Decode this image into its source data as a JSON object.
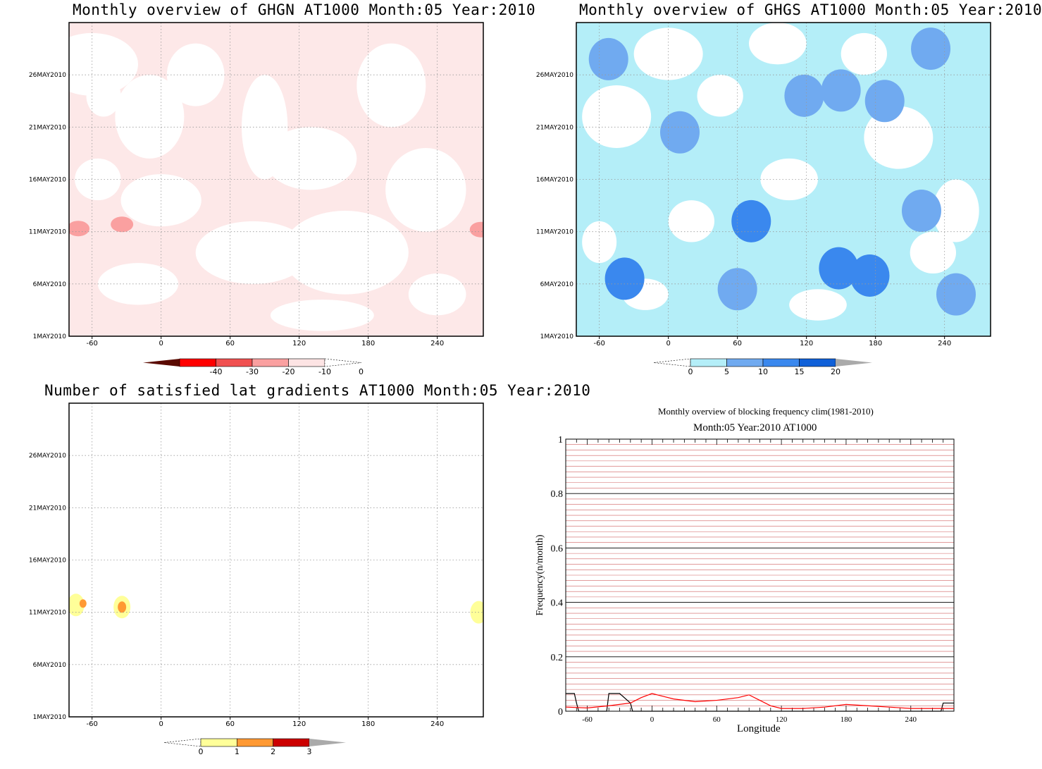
{
  "chart_data": [
    {
      "type": "heatmap",
      "title": "Monthly overview of GHGN AT1000 Month:05 Year:2010",
      "x_ticks": [
        "-60",
        "0",
        "60",
        "120",
        "180",
        "240"
      ],
      "x_tick_values": [
        -60,
        0,
        60,
        120,
        180,
        240
      ],
      "xlim": [
        -80,
        280
      ],
      "y_ticks": [
        "1MAY2010",
        "6MAY2010",
        "11MAY2010",
        "16MAY2010",
        "21MAY2010",
        "26MAY2010"
      ],
      "y_tick_values": [
        1,
        6,
        11,
        16,
        21,
        26
      ],
      "ylim": [
        1,
        31
      ],
      "colorbar": {
        "labels": [
          "-40",
          "-30",
          "-20",
          "-10",
          "0"
        ],
        "colors": [
          "#5a0a00",
          "#ff0000",
          "#f05050",
          "#faa0a0",
          "#fde4e4"
        ]
      },
      "fill_color": "#fde8e8",
      "blobs": [
        {
          "lon": -72,
          "day": 11.3,
          "level": "-10"
        },
        {
          "lon": -34,
          "day": 11.7,
          "level": "-10"
        },
        {
          "lon": 278,
          "day": 11.2,
          "level": "-10"
        }
      ]
    },
    {
      "type": "heatmap",
      "title": "Monthly overview of GHGS AT1000 Month:05 Year:2010",
      "x_ticks": [
        "-60",
        "0",
        "60",
        "120",
        "180",
        "240"
      ],
      "x_tick_values": [
        -60,
        0,
        60,
        120,
        180,
        240
      ],
      "xlim": [
        -80,
        280
      ],
      "y_ticks": [
        "1MAY2010",
        "6MAY2010",
        "11MAY2010",
        "16MAY2010",
        "21MAY2010",
        "26MAY2010"
      ],
      "y_tick_values": [
        1,
        6,
        11,
        16,
        21,
        26
      ],
      "ylim": [
        1,
        31
      ],
      "colorbar": {
        "labels": [
          "0",
          "5",
          "10",
          "15",
          "20"
        ],
        "colors": [
          "#b4eef8",
          "#70aaf0",
          "#3a88ee",
          "#1060d8",
          "#aaaaaa"
        ]
      },
      "fill_color": "#b4eef8",
      "blobs": [
        {
          "lon": -52,
          "day": 27.5,
          "level": "5"
        },
        {
          "lon": 10,
          "day": 20.5,
          "level": "5"
        },
        {
          "lon": 72,
          "day": 12,
          "level": "10"
        },
        {
          "lon": 150,
          "day": 24.5,
          "level": "5"
        },
        {
          "lon": 118,
          "day": 24,
          "level": "5"
        },
        {
          "lon": 228,
          "day": 28.5,
          "level": "5"
        },
        {
          "lon": -38,
          "day": 6.5,
          "level": "10"
        },
        {
          "lon": 148,
          "day": 7.5,
          "level": "10"
        },
        {
          "lon": 175,
          "day": 6.8,
          "level": "10"
        },
        {
          "lon": 60,
          "day": 5.5,
          "level": "5"
        },
        {
          "lon": 250,
          "day": 5,
          "level": "5"
        },
        {
          "lon": 220,
          "day": 13,
          "level": "5"
        },
        {
          "lon": 188,
          "day": 23.5,
          "level": "5"
        }
      ]
    },
    {
      "type": "heatmap",
      "title": "Number of satisfied lat gradients AT1000 Month:05 Year:2010",
      "x_ticks": [
        "-60",
        "0",
        "60",
        "120",
        "180",
        "240"
      ],
      "x_tick_values": [
        -60,
        0,
        60,
        120,
        180,
        240
      ],
      "xlim": [
        -80,
        280
      ],
      "y_ticks": [
        "1MAY2010",
        "6MAY2010",
        "11MAY2010",
        "16MAY2010",
        "21MAY2010",
        "26MAY2010"
      ],
      "y_tick_values": [
        1,
        6,
        11,
        16,
        21,
        26
      ],
      "ylim": [
        1,
        31
      ],
      "colorbar": {
        "labels": [
          "0",
          "1",
          "2",
          "3"
        ],
        "colors": [
          "#ffff99",
          "#ff9933",
          "#cc0000",
          "#aaaaaa"
        ]
      },
      "blobs": [
        {
          "lon": -74,
          "day": 11.7,
          "level": "1"
        },
        {
          "lon": -34,
          "day": 11.5,
          "level": "1"
        },
        {
          "lon": 276,
          "day": 11,
          "level": "1"
        }
      ]
    },
    {
      "type": "line",
      "title": "Monthly overview of blocking frequency clim(1981-2010)",
      "subtitle": "Month:05 Year:2010  AT1000",
      "xlabel": "Longitude",
      "ylabel": "Frequency(n/month)",
      "xlim": [
        -80,
        280
      ],
      "ylim": [
        0,
        1
      ],
      "x_ticks": [
        "-60",
        "0",
        "60",
        "120",
        "180",
        "240"
      ],
      "x_tick_values": [
        -60,
        0,
        60,
        120,
        180,
        240
      ],
      "y_ticks": [
        "0",
        "0.2",
        "0.4",
        "0.6",
        "0.8",
        "1"
      ],
      "y_tick_values": [
        0,
        0.2,
        0.4,
        0.6,
        0.8,
        1
      ],
      "grid": true,
      "series": [
        {
          "color": "#000000",
          "x": [
            -80,
            -72,
            -70,
            -68,
            -58,
            -42,
            -40,
            -30,
            -20,
            -18,
            260,
            268,
            270,
            280
          ],
          "y": [
            0.065,
            0.065,
            0.03,
            0.0,
            0.0,
            0.0,
            0.065,
            0.065,
            0.03,
            0.0,
            0.0,
            0.0,
            0.03,
            0.03
          ]
        },
        {
          "color": "#ff0000",
          "x": [
            -80,
            -60,
            -40,
            -20,
            -10,
            0,
            10,
            20,
            40,
            60,
            80,
            90,
            100,
            110,
            120,
            140,
            160,
            180,
            200,
            220,
            240,
            260,
            280
          ],
          "y": [
            0.015,
            0.012,
            0.02,
            0.03,
            0.05,
            0.065,
            0.055,
            0.045,
            0.035,
            0.04,
            0.05,
            0.06,
            0.04,
            0.02,
            0.01,
            0.01,
            0.015,
            0.025,
            0.02,
            0.015,
            0.01,
            0.01,
            0.01
          ]
        }
      ]
    }
  ]
}
